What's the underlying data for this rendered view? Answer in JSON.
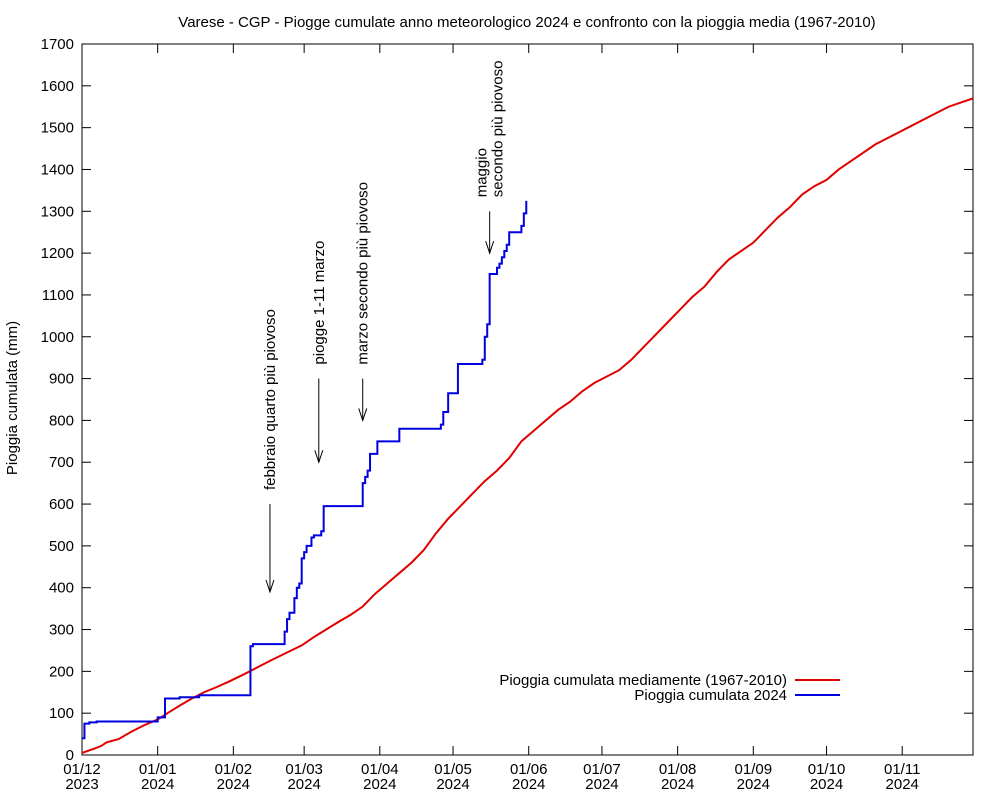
{
  "chart_data": {
    "type": "line",
    "title": "Varese - CGP - Piogge cumulate anno meteorologico 2024 e confronto con la pioggia media (1967-2010)",
    "ylabel": "Pioggia cumulata (mm)",
    "xlabel": "",
    "ylim": [
      0,
      1700
    ],
    "yticks": [
      0,
      100,
      200,
      300,
      400,
      500,
      600,
      700,
      800,
      900,
      1000,
      1100,
      1200,
      1300,
      1400,
      1500,
      1600,
      1700
    ],
    "xlim_days": [
      0,
      365
    ],
    "xticks": [
      {
        "day": 0,
        "label1": "01/12",
        "label2": "2023"
      },
      {
        "day": 31,
        "label1": "01/01",
        "label2": "2024"
      },
      {
        "day": 62,
        "label1": "01/02",
        "label2": "2024"
      },
      {
        "day": 91,
        "label1": "01/03",
        "label2": "2024"
      },
      {
        "day": 122,
        "label1": "01/04",
        "label2": "2024"
      },
      {
        "day": 152,
        "label1": "01/05",
        "label2": "2024"
      },
      {
        "day": 183,
        "label1": "01/06",
        "label2": "2024"
      },
      {
        "day": 213,
        "label1": "01/07",
        "label2": "2024"
      },
      {
        "day": 244,
        "label1": "01/08",
        "label2": "2024"
      },
      {
        "day": 275,
        "label1": "01/09",
        "label2": "2024"
      },
      {
        "day": 305,
        "label1": "01/10",
        "label2": "2024"
      },
      {
        "day": 336,
        "label1": "01/11",
        "label2": "2024"
      }
    ],
    "legend": {
      "placement": "bottom-right",
      "entries": [
        {
          "label": "Pioggia cumulata mediamente (1967-2010)",
          "color": "#e00000"
        },
        {
          "label": "Pioggia cumulata 2024",
          "color": "#0000e0"
        }
      ]
    },
    "series": [
      {
        "name": "Pioggia cumulata mediamente (1967-2010)",
        "color": "#e00000",
        "step": false,
        "x": [
          0,
          5,
          8,
          10,
          15,
          20,
          25,
          31,
          35,
          40,
          45,
          50,
          55,
          60,
          66,
          72,
          78,
          84,
          90,
          95,
          100,
          105,
          110,
          115,
          120,
          125,
          130,
          135,
          140,
          145,
          150,
          155,
          160,
          165,
          170,
          175,
          180,
          185,
          190,
          195,
          200,
          205,
          210,
          215,
          220,
          225,
          230,
          235,
          240,
          245,
          250,
          255,
          260,
          265,
          270,
          275,
          280,
          285,
          290,
          295,
          300,
          305,
          310,
          315,
          320,
          325,
          330,
          335,
          340,
          345,
          350,
          355,
          360,
          365
        ],
        "y": [
          5,
          15,
          22,
          30,
          38,
          55,
          70,
          85,
          100,
          118,
          135,
          150,
          162,
          175,
          192,
          210,
          228,
          245,
          262,
          282,
          300,
          318,
          335,
          355,
          385,
          410,
          435,
          460,
          490,
          530,
          565,
          595,
          625,
          655,
          680,
          710,
          750,
          775,
          800,
          825,
          845,
          870,
          890,
          905,
          920,
          945,
          975,
          1005,
          1035,
          1065,
          1095,
          1120,
          1155,
          1185,
          1205,
          1225,
          1255,
          1285,
          1310,
          1340,
          1360,
          1375,
          1400,
          1420,
          1440,
          1460,
          1475,
          1490,
          1505,
          1520,
          1535,
          1550,
          1560,
          1570
        ]
      },
      {
        "name": "Pioggia cumulata 2024",
        "color": "#0000e0",
        "step": true,
        "x": [
          0,
          1,
          3,
          6,
          30,
          31,
          34,
          40,
          48,
          55,
          68,
          69,
          70,
          82,
          83,
          84,
          85,
          87,
          88,
          89,
          90,
          91,
          92,
          94,
          95,
          98,
          99,
          100,
          114,
          115,
          116,
          117,
          118,
          121,
          130,
          147,
          148,
          150,
          154,
          164,
          165,
          166,
          167,
          170,
          171,
          172,
          173,
          174,
          175,
          180,
          181,
          182
        ],
        "y": [
          40,
          75,
          78,
          80,
          80,
          90,
          135,
          138,
          143,
          143,
          143,
          260,
          265,
          265,
          295,
          325,
          340,
          375,
          400,
          410,
          470,
          485,
          500,
          520,
          525,
          535,
          595,
          595,
          595,
          650,
          665,
          680,
          720,
          750,
          780,
          790,
          820,
          865,
          935,
          945,
          1000,
          1030,
          1150,
          1165,
          1175,
          1190,
          1205,
          1220,
          1250,
          1265,
          1295,
          1325
        ]
      }
    ],
    "annotations": [
      {
        "text_lines": [
          "febbraio quarto più piovoso"
        ],
        "day": 77,
        "arrow_tip": 390,
        "arrow_tail": 600
      },
      {
        "text_lines": [
          "piogge 1-11 marzo"
        ],
        "day": 97,
        "arrow_tip": 700,
        "arrow_tail": 900
      },
      {
        "text_lines": [
          "marzo secondo più piovoso"
        ],
        "day": 115,
        "arrow_tip": 800,
        "arrow_tail": 900
      },
      {
        "text_lines": [
          "maggio",
          "secondo più piovoso"
        ],
        "day": 167,
        "arrow_tip": 1200,
        "arrow_tail": 1300
      }
    ]
  }
}
